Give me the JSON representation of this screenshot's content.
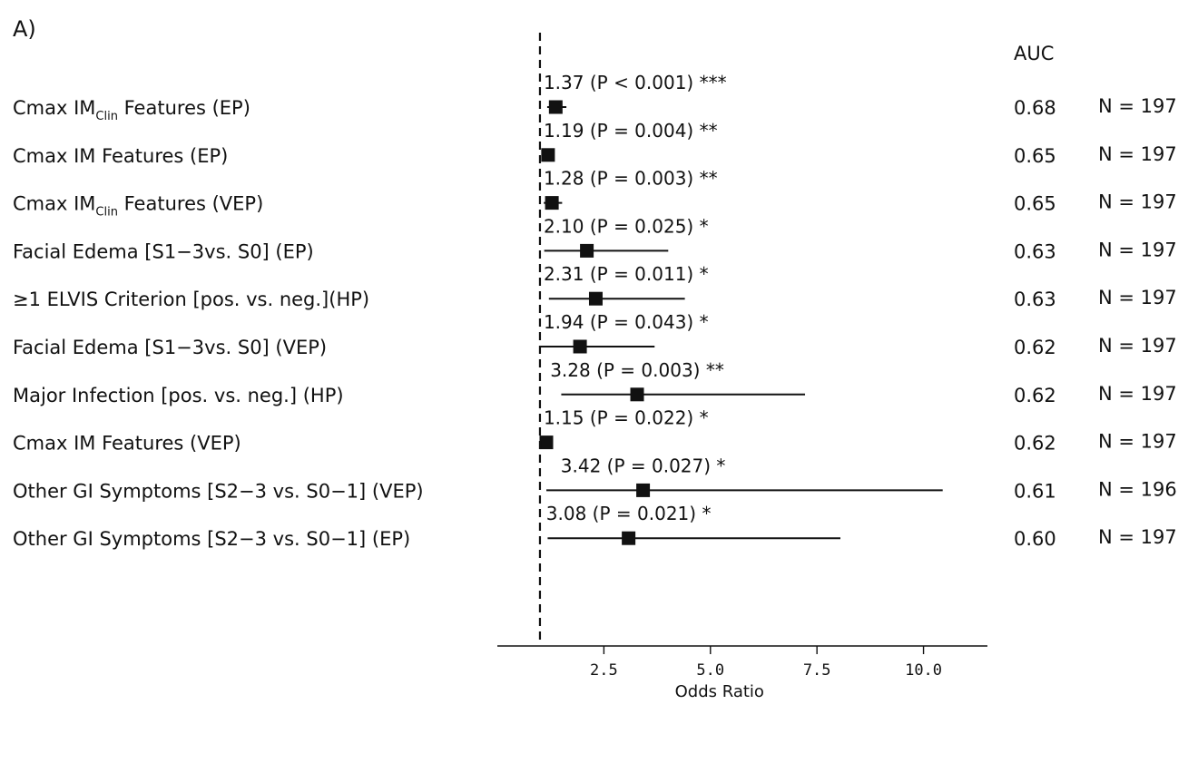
{
  "panel_label": "A)",
  "auc_header": "AUC",
  "chart_data": {
    "type": "forest",
    "xlabel": "Odds Ratio",
    "xlim": [
      0.0,
      11.5
    ],
    "xticks": [
      2.5,
      5.0,
      7.5,
      10.0
    ],
    "xtick_labels": [
      "2.5",
      "5.0",
      "7.5",
      "10.0"
    ],
    "reference_line": 1.0,
    "rows": [
      {
        "label": "Cmax IM",
        "label_sub": "Clin",
        "label_tail": " Features  (EP)",
        "or": 1.37,
        "ci": [
          1.17,
          1.62
        ],
        "annotation": "1.37 (P  < 0.001) ***",
        "auc": "0.68",
        "n": "N = 197"
      },
      {
        "label": "Cmax IM Features (EP)",
        "label_sub": "",
        "label_tail": "",
        "or": 1.19,
        "ci": [
          1.06,
          1.34
        ],
        "annotation": "1.19 (P  = 0.004) **",
        "auc": "0.65",
        "n": "N = 197"
      },
      {
        "label": "Cmax IM",
        "label_sub": "Clin",
        "label_tail": " Features  (VEP)",
        "or": 1.28,
        "ci": [
          1.09,
          1.52
        ],
        "annotation": "1.28 (P  = 0.003) **",
        "auc": "0.65",
        "n": "N = 197"
      },
      {
        "label": "Facial Edema [S1−3vs. S0] (EP)",
        "label_sub": "",
        "label_tail": "",
        "or": 2.1,
        "ci": [
          1.1,
          4.01
        ],
        "annotation": "2.10 (P  = 0.025) *",
        "auc": "0.63",
        "n": "N = 197"
      },
      {
        "label": "≥1 ELVIS Criterion [pos.  vs. neg.](HP)",
        "label_sub": "",
        "label_tail": "",
        "or": 2.31,
        "ci": [
          1.21,
          4.4
        ],
        "annotation": "2.31 (P  = 0.011) *",
        "auc": "0.63",
        "n": "N = 197"
      },
      {
        "label": "Facial Edema [S1−3vs. S0] (VEP)",
        "label_sub": "",
        "label_tail": "",
        "or": 1.94,
        "ci": [
          1.02,
          3.69
        ],
        "annotation": "1.94 (P  = 0.043) *",
        "auc": "0.62",
        "n": "N = 197"
      },
      {
        "label": "Major Infection [pos. vs. neg.] (HP)",
        "label_sub": "",
        "label_tail": "",
        "or": 3.28,
        "ci": [
          1.5,
          7.22
        ],
        "annotation": "3.28 (P  = 0.003) **",
        "auc": "0.62",
        "n": "N = 197"
      },
      {
        "label": "Cmax IM Features (VEP)",
        "label_sub": "",
        "label_tail": "",
        "or": 1.15,
        "ci": [
          1.02,
          1.29
        ],
        "annotation": "1.15 (P  = 0.022) *",
        "auc": "0.62",
        "n": "N = 197"
      },
      {
        "label": "Other GI Symptoms [S2−3 vs. S0−1] (VEP)",
        "label_sub": "",
        "label_tail": "",
        "or": 3.42,
        "ci": [
          1.15,
          10.45
        ],
        "annotation": "3.42 (P  = 0.027) *",
        "auc": "0.61",
        "n": "N = 196"
      },
      {
        "label": "Other GI Symptoms [S2−3 vs. S0−1] (EP)",
        "label_sub": "",
        "label_tail": "",
        "or": 3.08,
        "ci": [
          1.18,
          8.05
        ],
        "annotation": "3.08 (P  = 0.021) *",
        "auc": "0.60",
        "n": "N = 197"
      }
    ]
  }
}
